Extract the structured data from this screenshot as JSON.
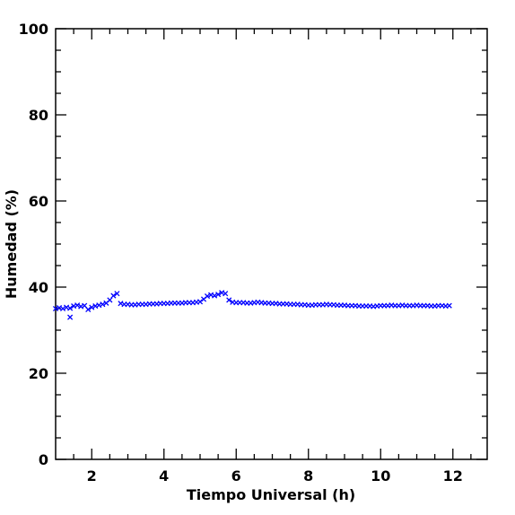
{
  "chart_data": {
    "type": "scatter",
    "xlabel": "Tiempo Universal (h)",
    "ylabel": "Humedad (%)",
    "xlim": [
      1,
      12.95
    ],
    "ylim": [
      0,
      100
    ],
    "xticks": [
      2,
      4,
      6,
      8,
      10,
      12
    ],
    "yticks": [
      0,
      20,
      40,
      60,
      80,
      100
    ],
    "xminorticks": [
      1.5,
      2.5,
      3,
      3.5,
      4.5,
      5,
      5.5,
      6.5,
      7,
      7.5,
      8.5,
      9,
      9.5,
      10.5,
      11,
      11.5,
      12.5
    ],
    "yminorticks": [
      5,
      10,
      15,
      25,
      30,
      35,
      45,
      50,
      55,
      65,
      70,
      75,
      85,
      90,
      95
    ],
    "series": [
      {
        "color": "#0000ff",
        "x": [
          1,
          1.1,
          1.2,
          1.3,
          1.4,
          1.5,
          1.6,
          1.7,
          1.8,
          1.9,
          2,
          2.1,
          2.2,
          2.3,
          2.4,
          2.5,
          2.6,
          2.7,
          2.8,
          2.9,
          3,
          3.1,
          3.2,
          3.3,
          3.4,
          3.5,
          3.6,
          3.7,
          3.8,
          3.9,
          4,
          4.1,
          4.2,
          4.3,
          4.4,
          4.5,
          4.6,
          4.7,
          4.8,
          4.9,
          5,
          5.1,
          5.2,
          5.3,
          5.4,
          5.5,
          5.6,
          5.7,
          5.8,
          5.9,
          6,
          6.1,
          6.2,
          6.3,
          6.4,
          6.5,
          6.6,
          6.7,
          6.8,
          6.9,
          7,
          7.1,
          7.2,
          7.3,
          7.4,
          7.5,
          7.6,
          7.7,
          7.8,
          7.9,
          8,
          8.1,
          8.2,
          8.3,
          8.4,
          8.5,
          8.6,
          8.7,
          8.8,
          8.9,
          9,
          9.1,
          9.2,
          9.3,
          9.4,
          9.5,
          9.6,
          9.7,
          9.8,
          9.9,
          10,
          10.1,
          10.2,
          10.3,
          10.4,
          10.5,
          10.6,
          10.7,
          10.8,
          10.9,
          11,
          11.1,
          11.2,
          11.3,
          11.4,
          11.5,
          11.6,
          11.7,
          11.8,
          11.9,
          1.4
        ],
        "values": [
          35,
          35.2,
          35,
          35.3,
          35.1,
          35.6,
          35.8,
          35.5,
          35.7,
          34.8,
          35.3,
          35.6,
          35.8,
          36,
          36.3,
          37,
          38,
          38.5,
          36.2,
          36,
          36,
          35.9,
          35.9,
          36,
          36,
          36,
          36.1,
          36.1,
          36.1,
          36.2,
          36.2,
          36.2,
          36.3,
          36.3,
          36.3,
          36.3,
          36.4,
          36.4,
          36.4,
          36.5,
          36.6,
          37.2,
          37.9,
          38.2,
          38,
          38.3,
          38.7,
          38.5,
          37,
          36.5,
          36.4,
          36.4,
          36.4,
          36.3,
          36.3,
          36.4,
          36.5,
          36.4,
          36.3,
          36.3,
          36.2,
          36.2,
          36.1,
          36.1,
          36.1,
          36,
          36,
          36,
          35.9,
          35.9,
          35.8,
          35.8,
          35.9,
          35.9,
          35.9,
          36,
          35.9,
          35.9,
          35.8,
          35.8,
          35.8,
          35.7,
          35.7,
          35.7,
          35.6,
          35.6,
          35.6,
          35.6,
          35.5,
          35.6,
          35.7,
          35.7,
          35.7,
          35.8,
          35.7,
          35.7,
          35.8,
          35.7,
          35.7,
          35.7,
          35.8,
          35.7,
          35.7,
          35.7,
          35.6,
          35.6,
          35.7,
          35.7,
          35.6,
          35.7,
          33
        ]
      }
    ]
  }
}
